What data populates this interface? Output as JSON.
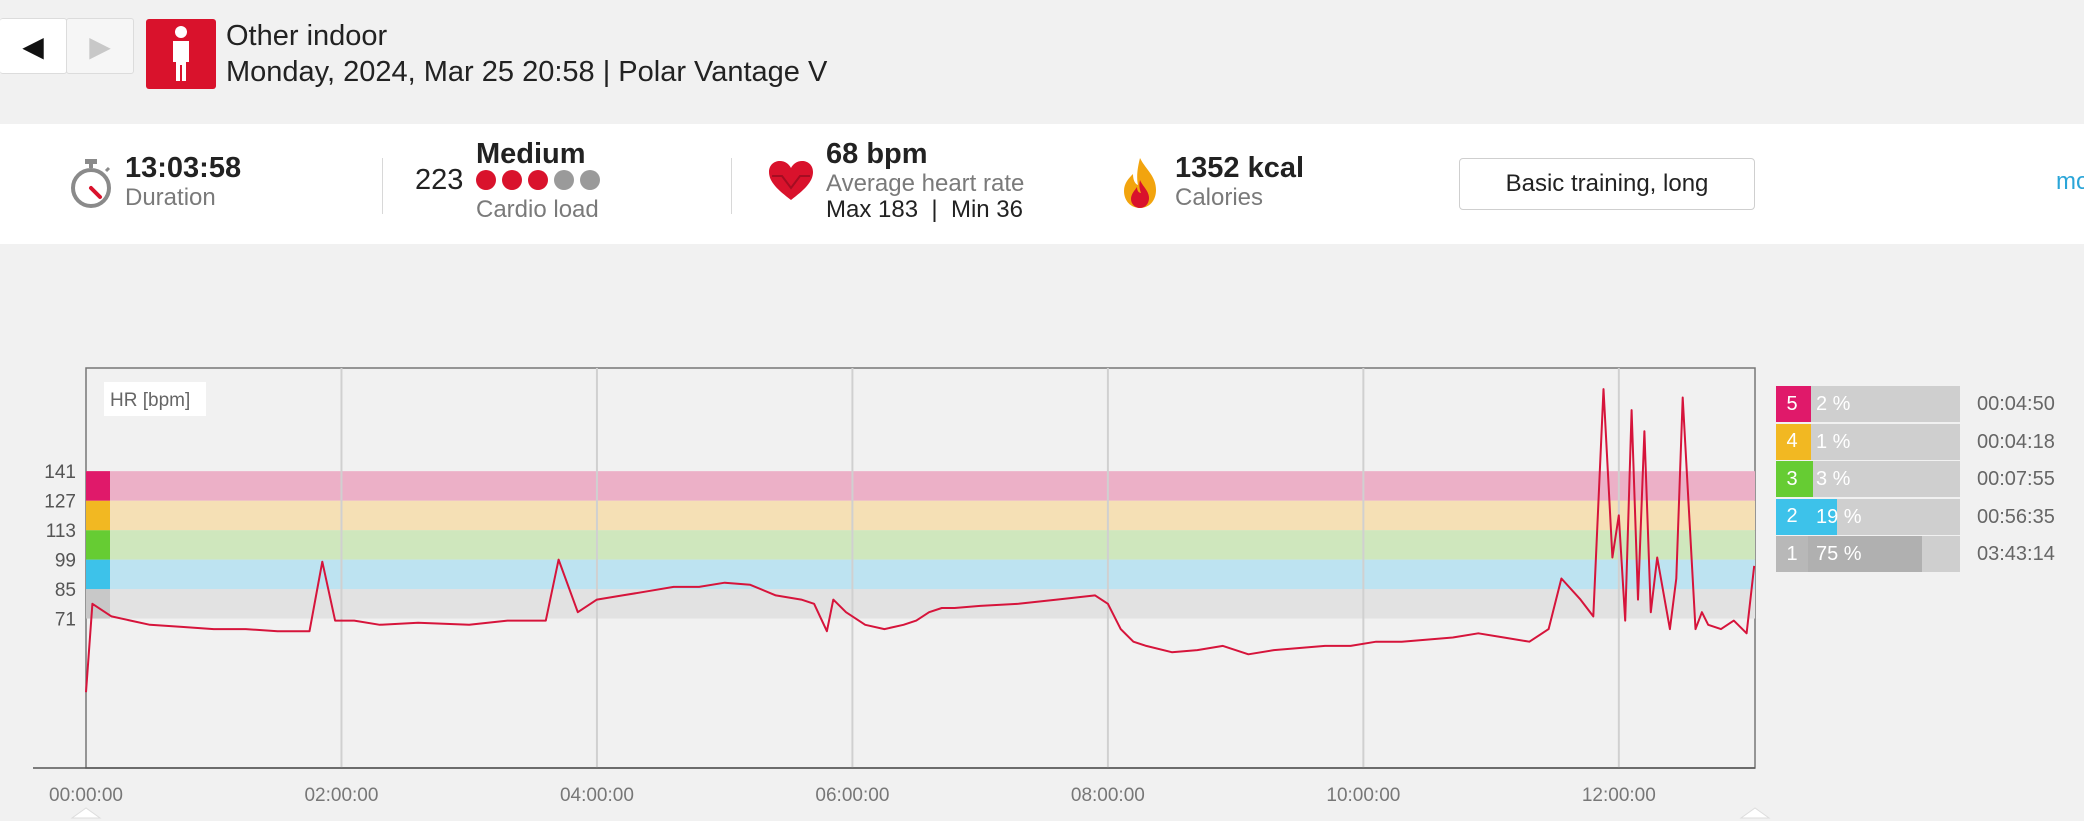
{
  "header": {
    "prev_label": "◀",
    "next_label": "▶",
    "sport_icon": "person-standing-icon",
    "title": "Other indoor",
    "subtitle": "Monday, 2024, Mar 25 20:58 | Polar Vantage V"
  },
  "summary": {
    "duration_value": "13:03:58",
    "duration_label": "Duration",
    "cardio_value": "223",
    "cardio_level": "Medium",
    "cardio_label": "Cardio load",
    "cardio_dots_filled": 3,
    "cardio_dots_total": 5,
    "hr_value": "68 bpm",
    "hr_label": "Average heart rate",
    "hr_maxmin": "Max 183  |  Min 36",
    "calories_value": "1352 kcal",
    "calories_label": "Calories",
    "training_benefit": "Basic training, long",
    "more_link": "mo"
  },
  "colors": {
    "brand_red": "#d9122c",
    "hr_line": "#d6143b",
    "zone5": "#e0196a",
    "zone4": "#f2b822",
    "zone3": "#66cc33",
    "zone2": "#3dc2ea",
    "zone1": "#c8c8c8"
  },
  "chart_data": {
    "type": "line",
    "title": "",
    "ylabel": "HR [bpm]",
    "xlabel": "",
    "x_unit": "hh:mm:ss",
    "x_ticks": [
      "00:00:00",
      "02:00:00",
      "04:00:00",
      "06:00:00",
      "08:00:00",
      "10:00:00",
      "12:00:00"
    ],
    "x_tick_hours": [
      0,
      2,
      4,
      6,
      8,
      10,
      12
    ],
    "x_range_hours": [
      0,
      13.066
    ],
    "y_ticks": [
      71,
      85,
      99,
      113,
      127,
      141
    ],
    "ylim": [
      0,
      190
    ],
    "zones": [
      {
        "zone": 1,
        "from": 71,
        "to": 85
      },
      {
        "zone": 2,
        "from": 85,
        "to": 99
      },
      {
        "zone": 3,
        "from": 99,
        "to": 113
      },
      {
        "zone": 4,
        "from": 113,
        "to": 127
      },
      {
        "zone": 5,
        "from": 127,
        "to": 141
      }
    ],
    "series": [
      {
        "values_hours": [
          0.0,
          0.05,
          0.2,
          0.35,
          0.5,
          0.75,
          1.0,
          1.25,
          1.5,
          1.75,
          1.85,
          1.95,
          2.1,
          2.3,
          2.6,
          3.0,
          3.3,
          3.6,
          3.7,
          3.85,
          4.0,
          4.2,
          4.4,
          4.6,
          4.8,
          5.0,
          5.2,
          5.4,
          5.6,
          5.7,
          5.8,
          5.85,
          5.95,
          6.1,
          6.25,
          6.4,
          6.5,
          6.6,
          6.7,
          6.8,
          7.0,
          7.3,
          7.6,
          7.9,
          8.0,
          8.1,
          8.2,
          8.3,
          8.5,
          8.7,
          8.9,
          9.1,
          9.3,
          9.5,
          9.7,
          9.9,
          10.1,
          10.3,
          10.5,
          10.7,
          10.9,
          11.1,
          11.3,
          11.45,
          11.55,
          11.7,
          11.8,
          11.88,
          11.95,
          12.0,
          12.05,
          12.1,
          12.15,
          12.2,
          12.25,
          12.3,
          12.4,
          12.45,
          12.5,
          12.6,
          12.65,
          12.7,
          12.8,
          12.9,
          13.0,
          13.06
        ],
        "values_bpm": [
          36,
          78,
          72,
          70,
          68,
          67,
          66,
          66,
          65,
          65,
          98,
          70,
          70,
          68,
          69,
          68,
          70,
          70,
          99,
          74,
          80,
          82,
          84,
          86,
          86,
          88,
          87,
          82,
          80,
          78,
          65,
          80,
          74,
          68,
          66,
          68,
          70,
          74,
          76,
          76,
          77,
          78,
          80,
          82,
          78,
          66,
          60,
          58,
          55,
          56,
          58,
          54,
          56,
          57,
          58,
          58,
          60,
          60,
          61,
          62,
          64,
          62,
          60,
          66,
          90,
          80,
          72,
          180,
          100,
          120,
          70,
          170,
          80,
          160,
          74,
          100,
          66,
          90,
          176,
          66,
          74,
          68,
          66,
          70,
          64,
          96
        ]
      }
    ]
  },
  "zone_table": [
    {
      "num": "5",
      "pct": "2 %",
      "pct_value": 2,
      "time": "00:04:50"
    },
    {
      "num": "4",
      "pct": "1 %",
      "pct_value": 1,
      "time": "00:04:18"
    },
    {
      "num": "3",
      "pct": "3 %",
      "pct_value": 3,
      "time": "00:07:55"
    },
    {
      "num": "2",
      "pct": "19 %",
      "pct_value": 19,
      "time": "00:56:35"
    },
    {
      "num": "1",
      "pct": "75 %",
      "pct_value": 75,
      "time": "03:43:14"
    }
  ]
}
